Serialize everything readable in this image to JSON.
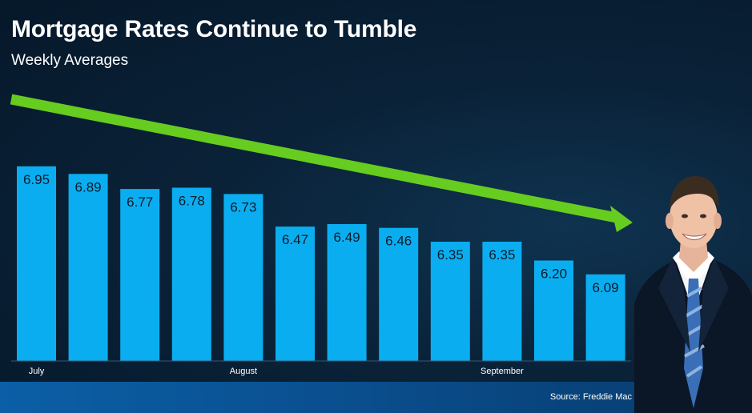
{
  "title": "Mortgage Rates Continue to Tumble",
  "subtitle": "Weekly Averages",
  "source": "Source: Freddie Mac",
  "colors": {
    "bar": "#0aaef0",
    "arrow": "#66cc1f",
    "footer": "#0b5fa6",
    "background": "#0a2238"
  },
  "chart_data": {
    "type": "bar",
    "title": "Mortgage Rates Continue to Tumble",
    "subtitle": "Weekly Averages",
    "values": [
      6.95,
      6.89,
      6.77,
      6.78,
      6.73,
      6.47,
      6.49,
      6.46,
      6.35,
      6.35,
      6.2,
      6.09
    ],
    "value_labels": [
      "6.95",
      "6.89",
      "6.77",
      "6.78",
      "6.73",
      "6.47",
      "6.49",
      "6.46",
      "6.35",
      "6.35",
      "6.20",
      "6.09"
    ],
    "x_tick_labels": [
      {
        "label": "July",
        "index": 0
      },
      {
        "label": "August",
        "index": 4
      },
      {
        "label": "September",
        "index": 9
      }
    ],
    "ylim": [
      5.4,
      7.0
    ],
    "grid": false,
    "legend": "none",
    "annotation": "downward trend arrow"
  },
  "photo": {
    "icon": "person-photo",
    "shirt_color": "#ffffff",
    "tie_color": "#3a6fb8",
    "suit_color": "#0b1626"
  }
}
